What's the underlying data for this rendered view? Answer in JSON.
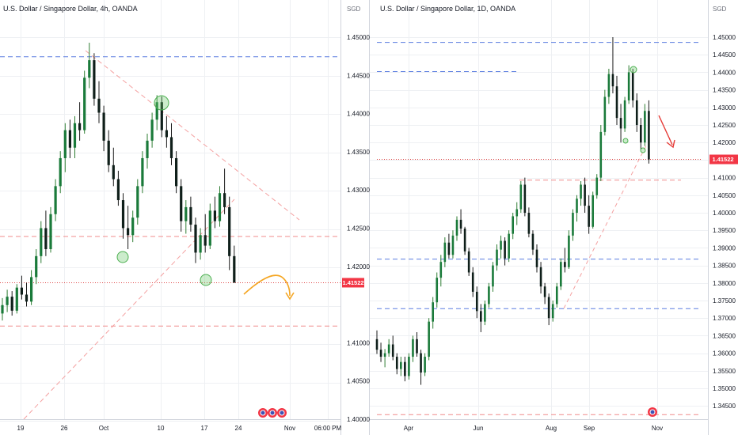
{
  "chart_data": [
    {
      "type": "candlestick",
      "title": "U.S. Dollar / Singapore Dollar, 4h, OANDA",
      "unit_label": "",
      "x_ticks": [
        "19",
        "26",
        "Oct",
        "10",
        "17",
        "24",
        "Nov",
        "06:00 PM"
      ],
      "y_ticks": [],
      "last_price": "1.41522",
      "ylim": [
        1.4,
        1.45
      ],
      "candles": [
        [
          0,
          1.4108,
          1.413,
          1.4098,
          1.412
        ],
        [
          1,
          1.412,
          1.4142,
          1.411,
          1.4132
        ],
        [
          2,
          1.4132,
          1.414,
          1.4105,
          1.4112
        ],
        [
          3,
          1.4112,
          1.415,
          1.4108,
          1.4145
        ],
        [
          4,
          1.4145,
          1.4162,
          1.4128,
          1.4135
        ],
        [
          5,
          1.4135,
          1.4152,
          1.4118,
          1.4125
        ],
        [
          6,
          1.4125,
          1.417,
          1.412,
          1.416
        ],
        [
          7,
          1.416,
          1.42,
          1.415,
          1.419
        ],
        [
          8,
          1.419,
          1.424,
          1.418,
          1.423
        ],
        [
          9,
          1.423,
          1.4255,
          1.419,
          1.42
        ],
        [
          10,
          1.42,
          1.426,
          1.4195,
          1.425
        ],
        [
          11,
          1.425,
          1.43,
          1.424,
          1.429
        ],
        [
          12,
          1.429,
          1.434,
          1.428,
          1.433
        ],
        [
          13,
          1.433,
          1.438,
          1.431,
          1.437
        ],
        [
          14,
          1.437,
          1.4385,
          1.433,
          1.4345
        ],
        [
          15,
          1.4345,
          1.439,
          1.433,
          1.438
        ],
        [
          16,
          1.438,
          1.441,
          1.4355,
          1.437
        ],
        [
          17,
          1.437,
          1.4455,
          1.4365,
          1.4445
        ],
        [
          18,
          1.4445,
          1.4495,
          1.443,
          1.447
        ],
        [
          19,
          1.447,
          1.448,
          1.4405,
          1.4415
        ],
        [
          20,
          1.4415,
          1.444,
          1.438,
          1.4395
        ],
        [
          21,
          1.4395,
          1.4405,
          1.434,
          1.4355
        ],
        [
          22,
          1.4355,
          1.437,
          1.431,
          1.432
        ],
        [
          23,
          1.432,
          1.4345,
          1.429,
          1.43
        ],
        [
          24,
          1.43,
          1.4312,
          1.4262,
          1.427
        ],
        [
          25,
          1.427,
          1.428,
          1.4215,
          1.423
        ],
        [
          26,
          1.423,
          1.4262,
          1.42,
          1.422
        ],
        [
          27,
          1.422,
          1.4255,
          1.421,
          1.4245
        ],
        [
          28,
          1.4245,
          1.43,
          1.4235,
          1.429
        ],
        [
          29,
          1.429,
          1.434,
          1.428,
          1.433
        ],
        [
          30,
          1.433,
          1.4365,
          1.4315,
          1.4355
        ],
        [
          31,
          1.4355,
          1.4395,
          1.4345,
          1.4385
        ],
        [
          32,
          1.4385,
          1.442,
          1.437,
          1.441
        ],
        [
          33,
          1.441,
          1.4418,
          1.436,
          1.437
        ],
        [
          34,
          1.437,
          1.439,
          1.4345,
          1.436
        ],
        [
          35,
          1.436,
          1.438,
          1.432,
          1.433
        ],
        [
          36,
          1.433,
          1.434,
          1.428,
          1.429
        ],
        [
          37,
          1.429,
          1.43,
          1.4225,
          1.424
        ],
        [
          38,
          1.424,
          1.427,
          1.4222,
          1.426
        ],
        [
          39,
          1.426,
          1.4275,
          1.4225,
          1.4235
        ],
        [
          40,
          1.4235,
          1.4245,
          1.418,
          1.4195
        ],
        [
          41,
          1.4195,
          1.423,
          1.4185,
          1.422
        ],
        [
          42,
          1.422,
          1.425,
          1.4195,
          1.4205
        ],
        [
          43,
          1.4205,
          1.4265,
          1.42,
          1.4255
        ],
        [
          44,
          1.4255,
          1.4275,
          1.423,
          1.424
        ],
        [
          45,
          1.424,
          1.429,
          1.4232,
          1.428
        ],
        [
          46,
          1.428,
          1.4315,
          1.425,
          1.426
        ],
        [
          47,
          1.426,
          1.4275,
          1.417,
          1.419
        ],
        [
          48,
          1.419,
          1.4205,
          1.4152,
          1.4152
        ]
      ],
      "levels": [
        {
          "value": 1.4475,
          "style": "dashed",
          "color": "#5b7de0"
        },
        {
          "value": 1.4218,
          "style": "dashed",
          "color": "#f08b8b"
        },
        {
          "value": 1.4152,
          "style": "dotted",
          "color": "#e04848"
        },
        {
          "value": 1.409,
          "style": "dashed",
          "color": "#f08b8b"
        }
      ]
    },
    {
      "type": "candlestick",
      "title": "U.S. Dollar / Singapore Dollar, 1D, OANDA",
      "unit_label": "SGD",
      "x_ticks": [
        "Apr",
        "Jun",
        "Aug",
        "Sep",
        "Nov"
      ],
      "y_ticks": [
        "1.45000",
        "1.44500",
        "1.44000",
        "1.43500",
        "1.43000",
        "1.42500",
        "1.42000",
        "1.41500",
        "1.41000",
        "1.40500",
        "1.40000",
        "1.39500",
        "1.39000",
        "1.38500",
        "1.38000",
        "1.37500",
        "1.37000",
        "1.36500",
        "1.36000",
        "1.35500",
        "1.35000",
        "1.34500"
      ],
      "last_price": "1.41522",
      "ylim": [
        1.342,
        1.4535
      ],
      "candles": [
        [
          0,
          1.364,
          1.3665,
          1.3598,
          1.361
        ],
        [
          1,
          1.361,
          1.363,
          1.3575,
          1.359
        ],
        [
          2,
          1.359,
          1.3612,
          1.356,
          1.36
        ],
        [
          3,
          1.36,
          1.364,
          1.359,
          1.3625
        ],
        [
          4,
          1.3625,
          1.365,
          1.358,
          1.359
        ],
        [
          5,
          1.359,
          1.36,
          1.354,
          1.3555
        ],
        [
          6,
          1.3555,
          1.359,
          1.3535,
          1.3575
        ],
        [
          7,
          1.3575,
          1.359,
          1.352,
          1.3535
        ],
        [
          8,
          1.3535,
          1.36,
          1.3525,
          1.359
        ],
        [
          9,
          1.359,
          1.365,
          1.3575,
          1.364
        ],
        [
          10,
          1.364,
          1.366,
          1.359,
          1.36
        ],
        [
          11,
          1.36,
          1.361,
          1.351,
          1.3545
        ],
        [
          12,
          1.3545,
          1.36,
          1.3535,
          1.359
        ],
        [
          13,
          1.359,
          1.37,
          1.358,
          1.369
        ],
        [
          14,
          1.369,
          1.376,
          1.367,
          1.3745
        ],
        [
          15,
          1.3745,
          1.383,
          1.373,
          1.3815
        ],
        [
          16,
          1.3815,
          1.388,
          1.379,
          1.386
        ],
        [
          17,
          1.386,
          1.393,
          1.3845,
          1.3915
        ],
        [
          18,
          1.3915,
          1.394,
          1.387,
          1.388
        ],
        [
          19,
          1.388,
          1.395,
          1.387,
          1.3935
        ],
        [
          20,
          1.3935,
          1.399,
          1.392,
          1.398
        ],
        [
          21,
          1.398,
          1.401,
          1.394,
          1.3955
        ],
        [
          22,
          1.3955,
          1.396,
          1.388,
          1.389
        ],
        [
          23,
          1.389,
          1.39,
          1.382,
          1.383
        ],
        [
          24,
          1.383,
          1.3845,
          1.376,
          1.3775
        ],
        [
          25,
          1.3775,
          1.379,
          1.37,
          1.372
        ],
        [
          26,
          1.372,
          1.374,
          1.366,
          1.369
        ],
        [
          27,
          1.369,
          1.375,
          1.368,
          1.374
        ],
        [
          28,
          1.374,
          1.38,
          1.373,
          1.379
        ],
        [
          29,
          1.379,
          1.386,
          1.3775,
          1.385
        ],
        [
          30,
          1.385,
          1.391,
          1.3835,
          1.3895
        ],
        [
          31,
          1.3895,
          1.3935,
          1.387,
          1.392
        ],
        [
          32,
          1.392,
          1.393,
          1.385,
          1.387
        ],
        [
          33,
          1.387,
          1.395,
          1.386,
          1.394
        ],
        [
          34,
          1.394,
          1.4,
          1.3925,
          1.399
        ],
        [
          35,
          1.399,
          1.403,
          1.3965,
          1.401
        ],
        [
          36,
          1.401,
          1.409,
          1.4,
          1.408
        ],
        [
          37,
          1.408,
          1.41,
          1.399,
          1.4
        ],
        [
          38,
          1.4,
          1.4015,
          1.393,
          1.394
        ],
        [
          39,
          1.394,
          1.395,
          1.388,
          1.3895
        ],
        [
          40,
          1.3895,
          1.391,
          1.383,
          1.3845
        ],
        [
          41,
          1.3845,
          1.386,
          1.377,
          1.379
        ],
        [
          42,
          1.379,
          1.38,
          1.374,
          1.376
        ],
        [
          43,
          1.376,
          1.377,
          1.368,
          1.37
        ],
        [
          44,
          1.37,
          1.375,
          1.369,
          1.374
        ],
        [
          45,
          1.374,
          1.38,
          1.373,
          1.379
        ],
        [
          46,
          1.379,
          1.387,
          1.378,
          1.386
        ],
        [
          47,
          1.386,
          1.39,
          1.383,
          1.3845
        ],
        [
          48,
          1.3845,
          1.395,
          1.384,
          1.3935
        ],
        [
          49,
          1.3935,
          1.401,
          1.392,
          1.4
        ],
        [
          50,
          1.4,
          1.405,
          1.3975,
          1.404
        ],
        [
          51,
          1.404,
          1.409,
          1.402,
          1.408
        ],
        [
          52,
          1.408,
          1.41,
          1.4,
          1.402
        ],
        [
          53,
          1.402,
          1.405,
          1.394,
          1.396
        ],
        [
          54,
          1.396,
          1.406,
          1.3955,
          1.405
        ],
        [
          55,
          1.405,
          1.411,
          1.404,
          1.41
        ],
        [
          56,
          1.41,
          1.425,
          1.409,
          1.423
        ],
        [
          57,
          1.423,
          1.435,
          1.422,
          1.433
        ],
        [
          58,
          1.433,
          1.441,
          1.431,
          1.4395
        ],
        [
          59,
          1.4395,
          1.45,
          1.434,
          1.436
        ],
        [
          60,
          1.436,
          1.439,
          1.425,
          1.427
        ],
        [
          61,
          1.427,
          1.431,
          1.42,
          1.424
        ],
        [
          62,
          1.424,
          1.433,
          1.423,
          1.432
        ],
        [
          63,
          1.432,
          1.442,
          1.431,
          1.44
        ],
        [
          64,
          1.44,
          1.441,
          1.43,
          1.432
        ],
        [
          65,
          1.432,
          1.434,
          1.423,
          1.425
        ],
        [
          66,
          1.425,
          1.427,
          1.418,
          1.42
        ],
        [
          67,
          1.42,
          1.431,
          1.419,
          1.429
        ],
        [
          68,
          1.429,
          1.432,
          1.414,
          1.4152
        ]
      ],
      "levels": [
        {
          "value": 1.4485,
          "style": "dashed",
          "color": "#5b7de0"
        },
        {
          "value": 1.4402,
          "style": "dashed",
          "color": "#5b7de0",
          "partial": true
        },
        {
          "value": 1.4152,
          "style": "dotted",
          "color": "#e04848"
        },
        {
          "value": 1.4093,
          "style": "dashed",
          "color": "#f08b8b",
          "partial": true
        },
        {
          "value": 1.3868,
          "style": "dashed",
          "color": "#5b7de0"
        },
        {
          "value": 1.3727,
          "style": "dashed",
          "color": "#5b7de0"
        },
        {
          "value": 1.3425,
          "style": "dashed",
          "color": "#f08b8b"
        }
      ]
    }
  ],
  "colors": {
    "up": "#26a69a",
    "down": "#ef5350",
    "body_up": "#1a7a3a",
    "body_down": "#0f1f1a",
    "price_label_bg": "#f23645",
    "grid": "#eef0f3"
  }
}
